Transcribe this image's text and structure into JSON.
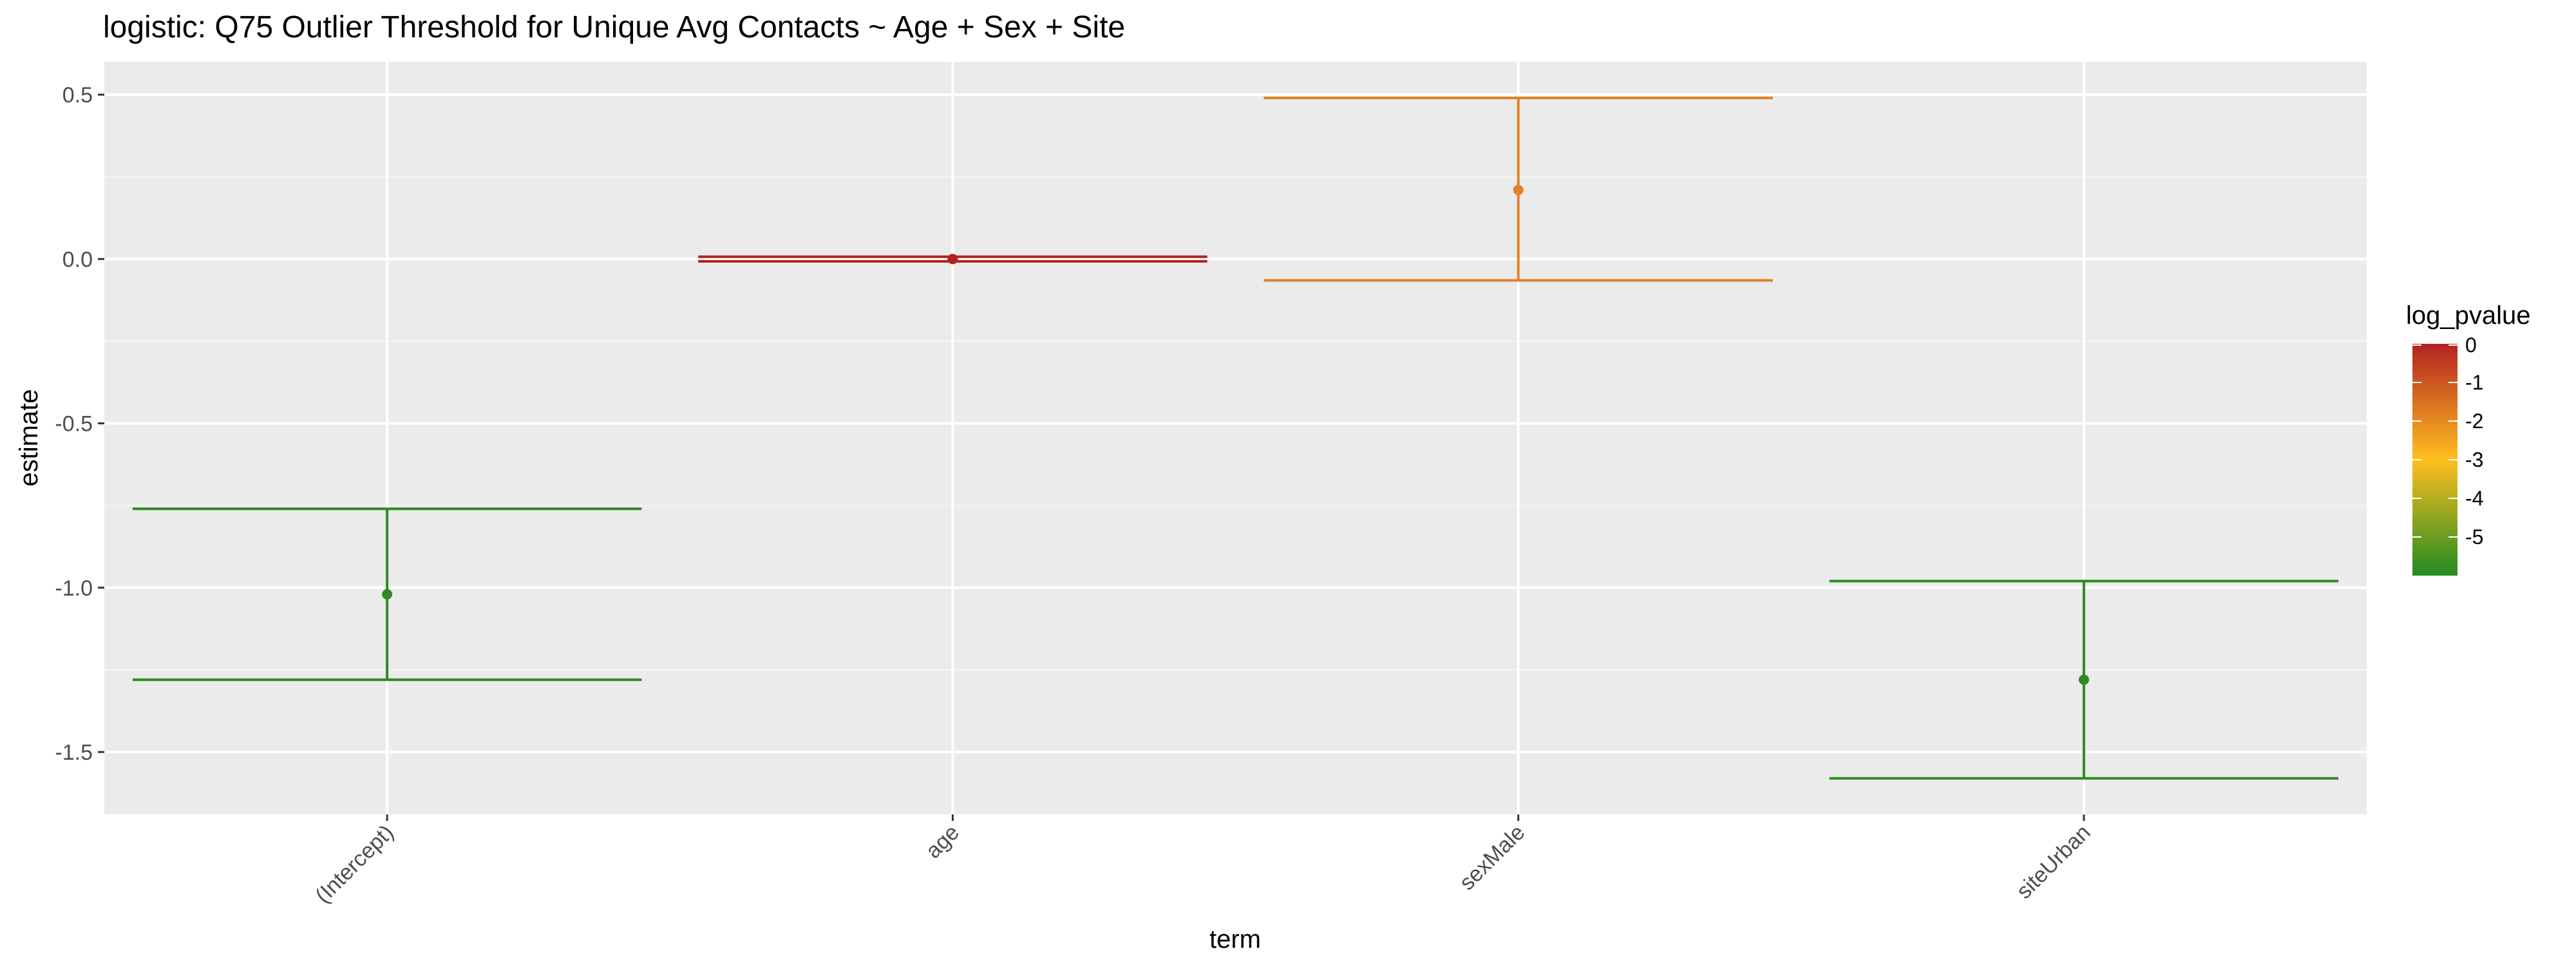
{
  "chart_data": {
    "type": "errorbar",
    "title": "logistic: Q75 Outlier Threshold for Unique Avg Contacts ~ Age + Sex + Site",
    "xlabel": "term",
    "ylabel": "estimate",
    "categories": [
      "(Intercept)",
      "age",
      "sexMale",
      "siteUrban"
    ],
    "ylim": [
      -1.69,
      0.6
    ],
    "yticks": [
      0.5,
      0.0,
      -0.5,
      -1.0,
      -1.5
    ],
    "ytick_labels": [
      "0.5",
      "0.0",
      "-0.5",
      "-1.0",
      "-1.5"
    ],
    "points": [
      {
        "term": "(Intercept)",
        "estimate": -1.02,
        "conf_low": -1.28,
        "conf_high": -0.76,
        "log_pvalue": -6.0,
        "color": "#2e8b22"
      },
      {
        "term": "age",
        "estimate": 0.0,
        "conf_low": -0.007,
        "conf_high": 0.007,
        "log_pvalue": 0.0,
        "color": "#b22222"
      },
      {
        "term": "sexMale",
        "estimate": 0.21,
        "conf_low": -0.065,
        "conf_high": 0.49,
        "log_pvalue": -1.6,
        "color": "#e0822a"
      },
      {
        "term": "siteUrban",
        "estimate": -1.28,
        "conf_low": -1.58,
        "conf_high": -0.98,
        "log_pvalue": -6.0,
        "color": "#2e8b22"
      }
    ],
    "grid": true,
    "legend": {
      "title": "log_pvalue",
      "position": "right",
      "type": "colorbar",
      "limits": [
        -6.0,
        0.0
      ],
      "ticks": [
        0,
        -1,
        -2,
        -3,
        -4,
        -5
      ],
      "tick_labels": [
        "0",
        "-1",
        "-2",
        "-3",
        "-4",
        "-5"
      ],
      "colors": [
        "#228b22",
        "#ffbf1f",
        "#b22222"
      ]
    },
    "colors": {
      "panel_background": "#ebebeb",
      "grid_major": "#ffffff",
      "grid_minor": "#f5f5f5",
      "axis_text": "#4d4d4d",
      "title_text": "#000000"
    }
  }
}
